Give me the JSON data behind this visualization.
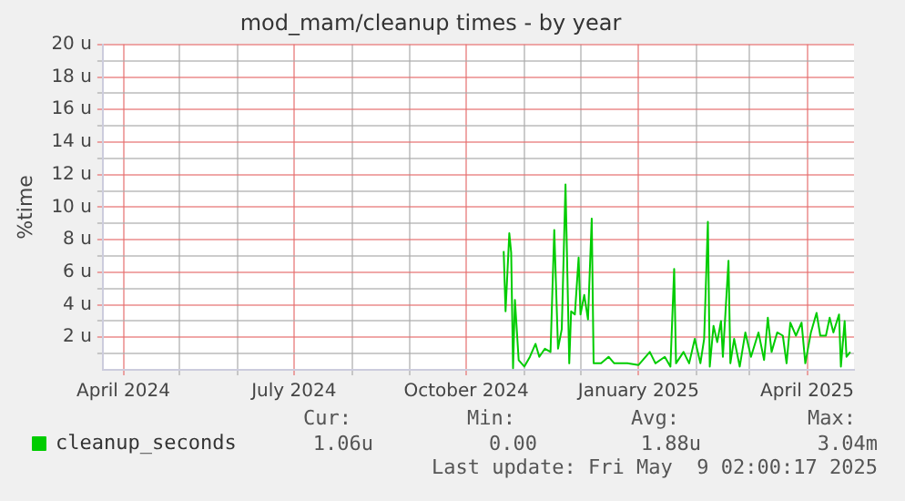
{
  "chart_data": {
    "type": "line",
    "title": "mod_mam/cleanup times - by year",
    "ylabel": "%time",
    "x": [
      "2024-10-21",
      "2024-10-22",
      "2024-10-24",
      "2024-10-25",
      "2024-10-26",
      "2024-10-27",
      "2024-10-29",
      "2024-11-01",
      "2024-11-04",
      "2024-11-07",
      "2024-11-09",
      "2024-11-12",
      "2024-11-15",
      "2024-11-17",
      "2024-11-19",
      "2024-11-21",
      "2024-11-23",
      "2024-11-25",
      "2024-11-26",
      "2024-11-28",
      "2024-11-30",
      "2024-12-01",
      "2024-12-03",
      "2024-12-05",
      "2024-12-07",
      "2024-12-08",
      "2024-12-12",
      "2024-12-16",
      "2024-12-19",
      "2024-12-26",
      "2025-01-01",
      "2025-01-07",
      "2025-01-10",
      "2025-01-15",
      "2025-01-18",
      "2025-01-20",
      "2025-01-21",
      "2025-01-25",
      "2025-01-28",
      "2025-01-31",
      "2025-02-03",
      "2025-02-05",
      "2025-02-07",
      "2025-02-08",
      "2025-02-10",
      "2025-02-12",
      "2025-02-14",
      "2025-02-15",
      "2025-02-18",
      "2025-02-19",
      "2025-02-21",
      "2025-02-24",
      "2025-02-27",
      "2025-03-02",
      "2025-03-06",
      "2025-03-09",
      "2025-03-11",
      "2025-03-13",
      "2025-03-16",
      "2025-03-19",
      "2025-03-21",
      "2025-03-23",
      "2025-03-26",
      "2025-03-29",
      "2025-03-31",
      "2025-04-03",
      "2025-04-06",
      "2025-04-08",
      "2025-04-11",
      "2025-04-13",
      "2025-04-15",
      "2025-04-18",
      "2025-04-19",
      "2025-04-21",
      "2025-04-22",
      "2025-04-24"
    ],
    "series": [
      {
        "name": "cleanup_seconds",
        "color": "#00cc00",
        "values": [
          7.3,
          3.6,
          8.4,
          7.2,
          0.1,
          4.3,
          0.6,
          0.2,
          0.8,
          1.6,
          0.8,
          1.3,
          1.1,
          8.6,
          1.3,
          2.5,
          11.4,
          0.4,
          3.6,
          3.4,
          6.9,
          3.4,
          4.6,
          3.1,
          9.3,
          0.4,
          0.4,
          0.8,
          0.4,
          0.4,
          0.3,
          1.1,
          0.4,
          0.8,
          0.2,
          6.2,
          0.4,
          1.1,
          0.4,
          1.9,
          0.4,
          1.9,
          9.1,
          0.2,
          2.7,
          1.7,
          3.0,
          0.8,
          6.7,
          0.4,
          1.9,
          0.2,
          2.3,
          0.8,
          2.3,
          0.6,
          3.2,
          1.1,
          2.3,
          2.1,
          0.4,
          2.9,
          2.1,
          2.9,
          0.4,
          2.3,
          3.5,
          2.1,
          2.1,
          3.2,
          2.3,
          3.4,
          0.2,
          3.0,
          0.8,
          1.1
        ]
      }
    ],
    "xlim": [
      "2024-03-21",
      "2025-04-26"
    ],
    "xticks": [
      {
        "value": "2024-04-01",
        "label": "April 2024"
      },
      {
        "value": "2024-05-01",
        "label": null
      },
      {
        "value": "2024-06-01",
        "label": null
      },
      {
        "value": "2024-07-01",
        "label": "July 2024"
      },
      {
        "value": "2024-08-01",
        "label": null
      },
      {
        "value": "2024-09-01",
        "label": null
      },
      {
        "value": "2024-10-01",
        "label": "October 2024"
      },
      {
        "value": "2024-11-01",
        "label": null
      },
      {
        "value": "2024-12-01",
        "label": null
      },
      {
        "value": "2025-01-01",
        "label": "January 2025"
      },
      {
        "value": "2025-02-01",
        "label": null
      },
      {
        "value": "2025-03-01",
        "label": null
      },
      {
        "value": "2025-04-01",
        "label": "April 2025"
      }
    ],
    "ylim": [
      0,
      20
    ],
    "yticks": [
      {
        "value": 1,
        "label": null
      },
      {
        "value": 2,
        "label": "2 u"
      },
      {
        "value": 3,
        "label": null
      },
      {
        "value": 4,
        "label": "4 u"
      },
      {
        "value": 5,
        "label": null
      },
      {
        "value": 6,
        "label": "6 u"
      },
      {
        "value": 7,
        "label": null
      },
      {
        "value": 8,
        "label": "8 u"
      },
      {
        "value": 9,
        "label": null
      },
      {
        "value": 10,
        "label": "10 u"
      },
      {
        "value": 11,
        "label": null
      },
      {
        "value": 12,
        "label": "12 u"
      },
      {
        "value": 13,
        "label": null
      },
      {
        "value": 14,
        "label": "14 u"
      },
      {
        "value": 15,
        "label": null
      },
      {
        "value": 16,
        "label": "16 u"
      },
      {
        "value": 17,
        "label": null
      },
      {
        "value": 18,
        "label": "18 u"
      },
      {
        "value": 19,
        "label": null
      },
      {
        "value": 20,
        "label": "20 u"
      }
    ],
    "grid": true,
    "legend": "bottom left",
    "marker": "none",
    "line_style": "solid",
    "annotations": [
      "Cur:",
      "1.06u",
      "Min:",
      "0.00",
      "Avg:",
      "1.88u",
      "Max:",
      "3.04m",
      "Last update: Fri May  9 02:00:17 2025"
    ]
  }
}
